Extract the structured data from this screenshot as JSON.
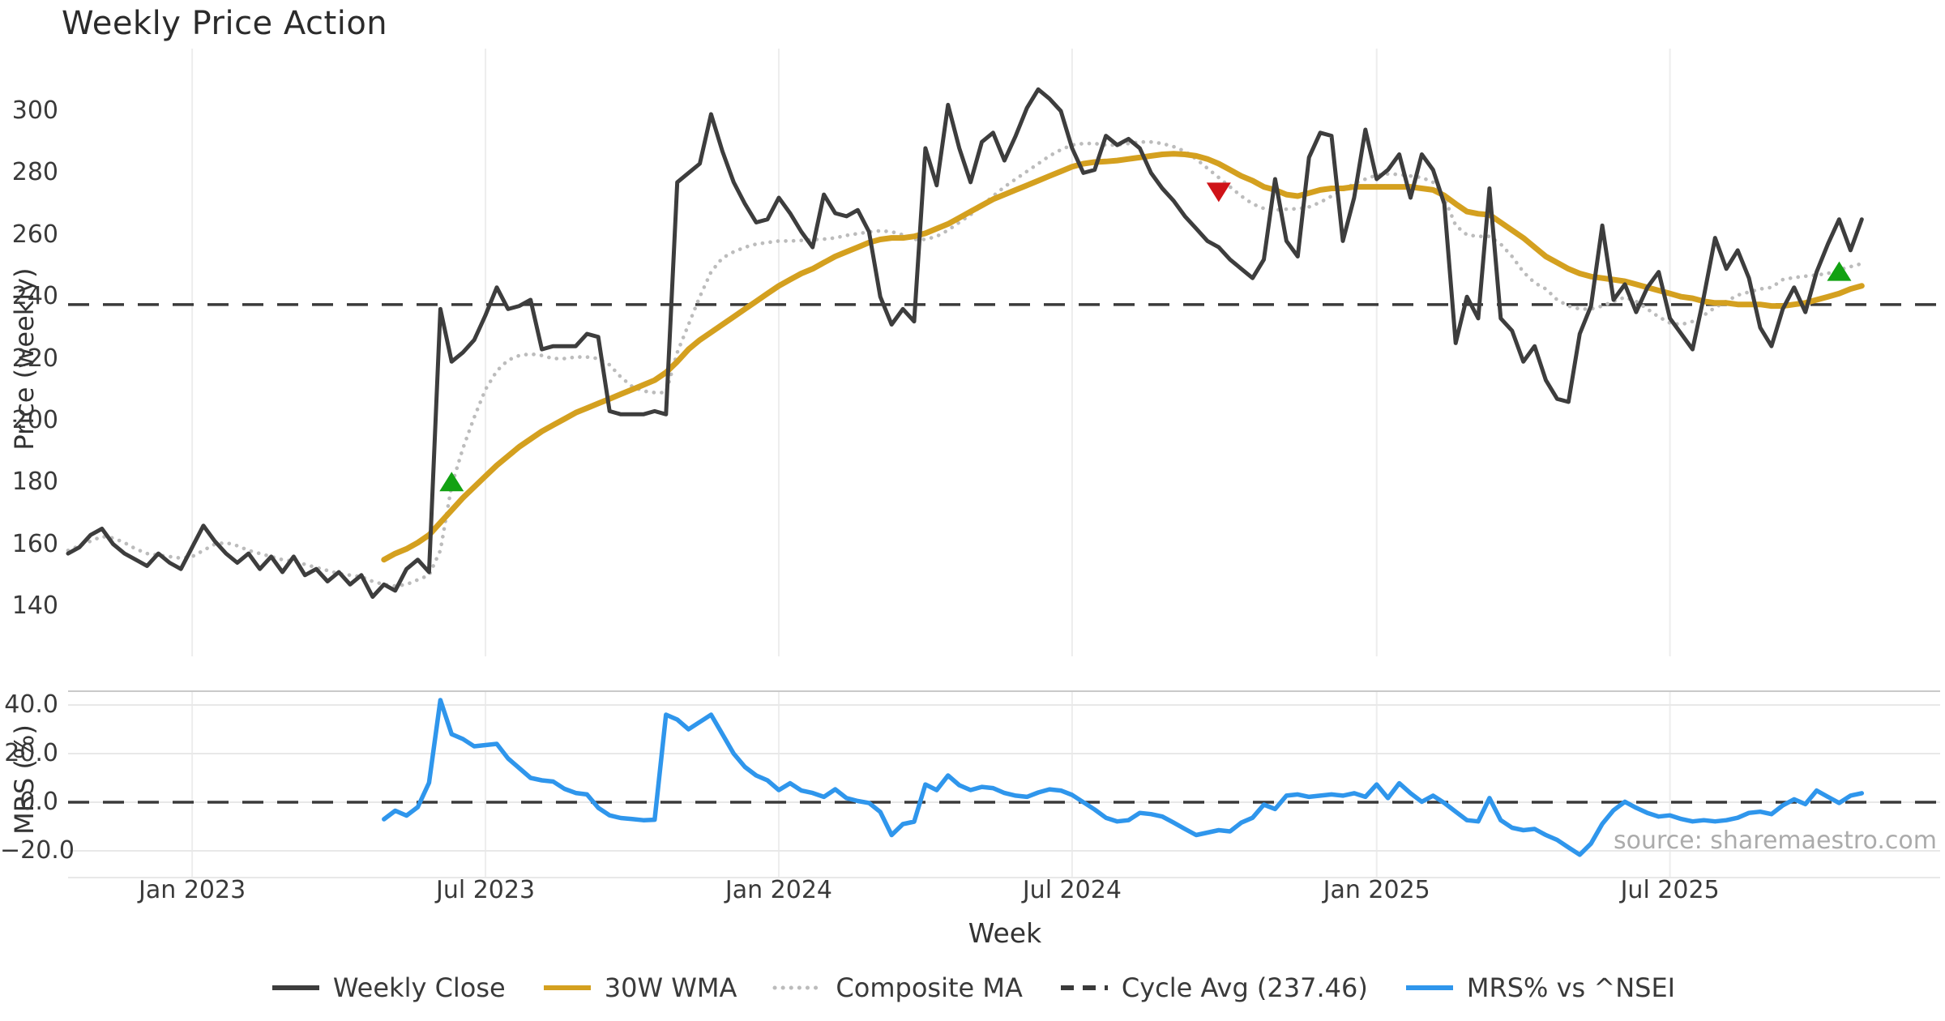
{
  "title": "Weekly Price Action",
  "x_axis_label": "Week",
  "watermark": "source: sharemaestro.com",
  "panels": {
    "price": {
      "y_axis_label": "Price (weekly)"
    },
    "mrs": {
      "y_axis_label": "MRS (%)"
    }
  },
  "legend": [
    {
      "label": "Weekly Close",
      "color": "#3d3d3d",
      "style": "solid"
    },
    {
      "label": "30W WMA",
      "color": "#d4a01f",
      "style": "solid"
    },
    {
      "label": "Composite MA",
      "color": "#bcbcbc",
      "style": "dotted"
    },
    {
      "label": "Cycle Avg (237.46)",
      "color": "#3a3a3a",
      "style": "dashed"
    },
    {
      "label": "MRS% vs ^NSEI",
      "color": "#2f96ec",
      "style": "solid"
    }
  ],
  "chart_data": [
    {
      "type": "line",
      "panel": "price",
      "title": "Weekly Price Action",
      "xlabel": "Week",
      "ylabel": "Price (weekly)",
      "x_unit": "week_index_from_2022-10-17",
      "xlim": [
        0,
        166
      ],
      "ylim": [
        127,
        312
      ],
      "grid": "vertical",
      "x_ticks": [
        {
          "pos": 11,
          "label": "Jan 2023"
        },
        {
          "pos": 37,
          "label": "Jul 2023"
        },
        {
          "pos": 63,
          "label": "Jan 2024"
        },
        {
          "pos": 89,
          "label": "Jul 2024"
        },
        {
          "pos": 116,
          "label": "Jan 2025"
        },
        {
          "pos": 142,
          "label": "Jul 2025"
        }
      ],
      "y_ticks": [
        300,
        280,
        260,
        240,
        220,
        200,
        180,
        160,
        140
      ],
      "cycle_avg": 237.46,
      "series": [
        {
          "name": "Weekly Close",
          "color": "#3d3d3d",
          "width": 5,
          "style": "solid",
          "values": [
            157,
            159,
            163,
            165,
            160,
            157,
            155,
            153,
            157,
            154,
            152,
            159,
            166,
            161,
            157,
            154,
            157,
            152,
            156,
            151,
            156,
            150,
            152,
            148,
            151,
            147,
            150,
            143,
            147,
            145,
            152,
            155,
            151,
            236,
            219,
            222,
            226,
            234,
            243,
            236,
            237,
            239,
            223,
            224,
            224,
            224,
            228,
            227,
            203,
            202,
            202,
            202,
            203,
            202,
            277,
            280,
            283,
            299,
            287,
            277,
            270,
            264,
            265,
            272,
            267,
            261,
            256,
            273,
            267,
            266,
            268,
            261,
            240,
            231,
            236,
            232,
            288,
            276,
            302,
            288,
            277,
            290,
            293,
            284,
            292,
            301,
            307,
            304,
            300,
            288,
            280,
            281,
            292,
            289,
            291,
            288,
            280,
            275,
            271,
            266,
            262,
            258,
            256,
            252,
            249,
            246,
            252,
            278,
            258,
            253,
            285,
            293,
            292,
            258,
            272,
            294,
            278,
            281,
            286,
            272,
            286,
            281,
            270,
            225,
            240,
            233,
            275,
            233,
            229,
            219,
            224,
            213,
            207,
            206,
            228,
            237,
            263,
            239,
            244,
            235,
            243,
            248,
            233,
            228,
            223,
            240,
            259,
            249,
            255,
            246,
            230,
            224,
            236,
            243,
            235,
            248,
            257,
            265,
            255,
            265
          ]
        },
        {
          "name": "30W WMA",
          "color": "#d4a01f",
          "width": 7,
          "style": "solid",
          "values": [
            null,
            null,
            null,
            null,
            null,
            null,
            null,
            null,
            null,
            null,
            null,
            null,
            null,
            null,
            null,
            null,
            null,
            null,
            null,
            null,
            null,
            null,
            null,
            null,
            null,
            null,
            null,
            null,
            155,
            157,
            158.5,
            160.5,
            163,
            167,
            171,
            175,
            178.5,
            182,
            185.5,
            188.5,
            191.5,
            194,
            196.5,
            198.5,
            200.5,
            202.5,
            204,
            205.5,
            207,
            208.5,
            210,
            211.5,
            213,
            215.5,
            219,
            223,
            226,
            228.5,
            231,
            233.5,
            236,
            238.5,
            241,
            243.5,
            245.5,
            247.5,
            249,
            251,
            253,
            254.5,
            256,
            257.5,
            258.5,
            259,
            259,
            259.5,
            260.5,
            262,
            263.5,
            265.5,
            267.5,
            269.5,
            271.5,
            273,
            274.5,
            276,
            277.5,
            279,
            280.5,
            282,
            283,
            283.5,
            283.7,
            284,
            284.5,
            285,
            285.5,
            286,
            286.2,
            286,
            285.5,
            284.5,
            283,
            281,
            279,
            277.5,
            275.5,
            274.5,
            273,
            272.5,
            273.5,
            274.5,
            275,
            275,
            275.5,
            275.5,
            275.5,
            275.5,
            275.5,
            275.5,
            275,
            274.5,
            272.7,
            270,
            267.5,
            266.8,
            266.5,
            264,
            261.5,
            259,
            256,
            253,
            251,
            249,
            247.5,
            246.5,
            246,
            245.5,
            245,
            244,
            243,
            242,
            241,
            240,
            239.5,
            238.5,
            238,
            238,
            237.5,
            237.5,
            237.5,
            237,
            237,
            237.5,
            238,
            239,
            240,
            241,
            242.5,
            243.5
          ]
        },
        {
          "name": "Composite MA",
          "color": "#bcbcbc",
          "width": 4.6,
          "style": "dotted",
          "values": [
            158,
            159.5,
            161,
            162.5,
            162,
            160.5,
            158.5,
            157,
            156.5,
            156,
            155.5,
            156,
            158,
            160,
            160.5,
            159.5,
            158,
            157,
            156,
            155,
            154.5,
            153.5,
            152.5,
            151.5,
            150.5,
            150,
            149.5,
            148,
            147,
            146.5,
            147,
            148.5,
            150,
            158,
            179,
            191,
            201,
            210,
            216,
            219.5,
            221,
            221.5,
            221,
            220,
            220,
            220.5,
            220.5,
            220,
            218,
            214,
            211,
            209.5,
            209,
            209,
            222,
            231,
            240,
            248,
            252.5,
            254.5,
            256,
            257,
            257.5,
            258,
            258,
            258.2,
            258.4,
            258.6,
            259,
            259.8,
            260.4,
            260.9,
            261.3,
            261,
            260,
            258.5,
            258.5,
            259.5,
            261.5,
            264,
            266.5,
            269.5,
            272.5,
            275.5,
            278,
            280.5,
            283,
            285.5,
            287.5,
            289,
            289.5,
            289.5,
            289,
            289,
            289.5,
            290,
            290,
            289.5,
            288.5,
            287,
            284.5,
            281.5,
            278.5,
            275.5,
            272.5,
            270,
            268.5,
            268,
            268.3,
            268.4,
            269,
            270.5,
            272.5,
            274.5,
            276.5,
            278,
            279.3,
            279.7,
            279.5,
            279,
            278.5,
            277,
            272,
            263,
            260,
            259.5,
            259.5,
            257,
            253,
            248,
            244.5,
            242.5,
            239,
            237,
            236,
            236,
            237,
            238.5,
            239.8,
            238.5,
            236,
            233.5,
            231.5,
            231,
            232,
            234,
            236.5,
            238.5,
            240.5,
            241.5,
            242.5,
            243,
            245.5,
            246.2,
            246.6,
            247,
            247.5,
            248.7,
            249.7,
            250.7
          ]
        }
      ],
      "markers": [
        {
          "week": 34,
          "value": 180,
          "direction": "up",
          "color": "#12a112"
        },
        {
          "week": 102,
          "value": 274,
          "direction": "down",
          "color": "#cf1318"
        },
        {
          "week": 157,
          "value": 248,
          "direction": "up",
          "color": "#12a112"
        }
      ]
    },
    {
      "type": "line",
      "panel": "mrs",
      "xlabel": "Week",
      "ylabel": "MRS (%)",
      "xlim": [
        0,
        166
      ],
      "ylim": [
        -27.5,
        45.5
      ],
      "grid": "both",
      "zero_line": 0,
      "y_ticks": [
        {
          "v": 40,
          "label": "40.0"
        },
        {
          "v": 20,
          "label": "20.0"
        },
        {
          "v": 0,
          "label": "0.0"
        },
        {
          "v": -20,
          "label": "−20.0"
        }
      ],
      "series": [
        {
          "name": "MRS% vs ^NSEI",
          "color": "#2f96ec",
          "width": 5.5,
          "style": "solid",
          "values": [
            null,
            null,
            null,
            null,
            null,
            null,
            null,
            null,
            null,
            null,
            null,
            null,
            null,
            null,
            null,
            null,
            null,
            null,
            null,
            null,
            null,
            null,
            null,
            null,
            null,
            null,
            null,
            null,
            -7,
            -3.5,
            -5.5,
            -2,
            8,
            42,
            28,
            26,
            23,
            23.5,
            24,
            18,
            14,
            10,
            9,
            8.5,
            5.5,
            3.8,
            3.2,
            -2.3,
            -5.4,
            -6.5,
            -6.9,
            -7.4,
            -7.2,
            36,
            34,
            30,
            33,
            36,
            28,
            20,
            14.5,
            11,
            9,
            5,
            7.8,
            4.8,
            3.8,
            2.2,
            5.3,
            1.7,
            0.5,
            -0.3,
            -4,
            -13.5,
            -9,
            -8,
            7.3,
            5,
            11,
            7,
            5,
            6.3,
            5.8,
            3.8,
            2.7,
            2.2,
            4,
            5.3,
            4.8,
            3,
            0,
            -3,
            -6.4,
            -7.9,
            -7.4,
            -4.4,
            -4.9,
            -5.9,
            -8.4,
            -11,
            -13.5,
            -12.5,
            -11.5,
            -12,
            -8.4,
            -6.4,
            -1,
            -2.8,
            2.7,
            3.2,
            2.2,
            2.7,
            3.2,
            2.7,
            3.7,
            2.2,
            7.3,
            1.7,
            7.8,
            3.7,
            0.2,
            2.7,
            -0.3,
            -3.9,
            -7.4,
            -7.9,
            1.7,
            -7.4,
            -10.5,
            -11.5,
            -11,
            -13.5,
            -15.5,
            -18.6,
            -21.6,
            -17,
            -8.9,
            -3.3,
            0.2,
            -2.3,
            -4.4,
            -5.9,
            -5.4,
            -6.9,
            -7.9,
            -7.4,
            -7.9,
            -7.4,
            -6.4,
            -4.4,
            -3.9,
            -4.9,
            -1.3,
            1.2,
            -0.8,
            4.8,
            2.2,
            -0.3,
            2.7,
            3.7
          ]
        }
      ]
    }
  ]
}
